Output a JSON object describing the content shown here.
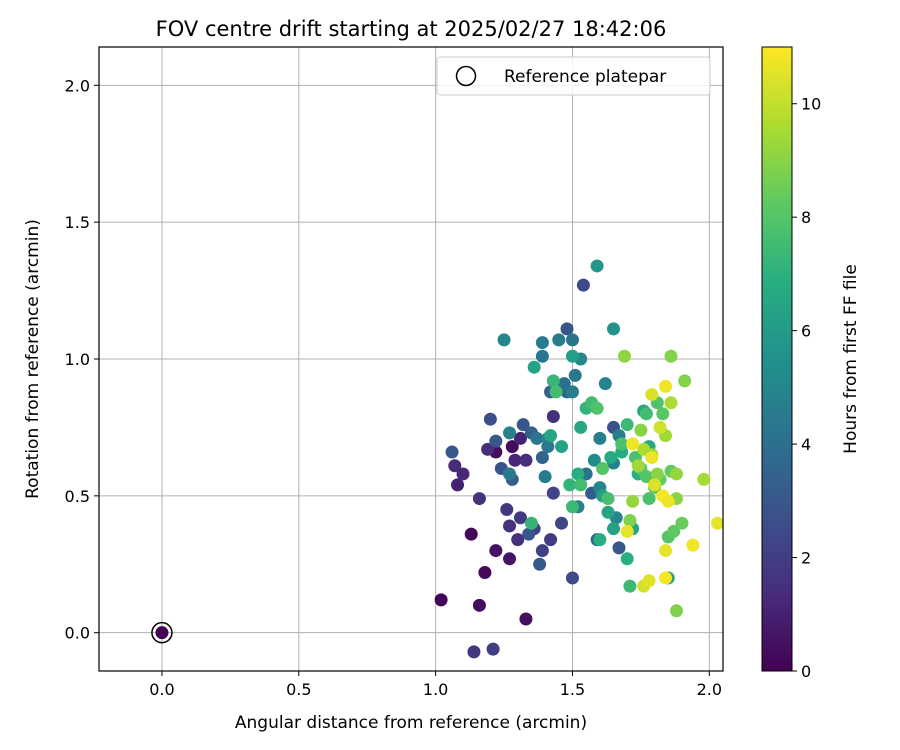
{
  "chart_data": {
    "type": "scatter",
    "title": "FOV centre drift starting at 2025/02/27 18:42:06",
    "xlabel": "Angular distance from reference (arcmin)",
    "ylabel": "Rotation from reference (arcmin)",
    "xlim": [
      -0.23,
      2.05
    ],
    "ylim": [
      -0.14,
      2.14
    ],
    "xticks": [
      0.0,
      0.5,
      1.0,
      1.5,
      2.0
    ],
    "xtick_labels": [
      "0.0",
      "0.5",
      "1.0",
      "1.5",
      "2.0"
    ],
    "yticks": [
      0.0,
      0.5,
      1.0,
      1.5,
      2.0
    ],
    "ytick_labels": [
      "0.0",
      "0.5",
      "1.0",
      "1.5",
      "2.0"
    ],
    "grid": true,
    "legend": {
      "placement": "upper right",
      "label": "Reference platepar"
    },
    "reference_point": {
      "x": 0.0,
      "y": 0.0
    },
    "colorbar": {
      "label": "Hours from first FF file",
      "range": [
        0,
        11
      ],
      "ticks": [
        0,
        2,
        4,
        6,
        8,
        10
      ],
      "tick_labels": [
        "0",
        "2",
        "4",
        "6",
        "8",
        "10"
      ],
      "colormap": "viridis"
    },
    "points": [
      {
        "x": 1.02,
        "y": 0.12,
        "c": 0.1
      },
      {
        "x": 1.13,
        "y": 0.36,
        "c": 0.2
      },
      {
        "x": 1.16,
        "y": 0.1,
        "c": 0.3
      },
      {
        "x": 1.18,
        "y": 0.22,
        "c": 0.2
      },
      {
        "x": 1.22,
        "y": 0.66,
        "c": 0.4
      },
      {
        "x": 1.22,
        "y": 0.3,
        "c": 0.5
      },
      {
        "x": 1.27,
        "y": 0.27,
        "c": 0.6
      },
      {
        "x": 1.28,
        "y": 0.68,
        "c": 0.3
      },
      {
        "x": 1.33,
        "y": 0.05,
        "c": 0.4
      },
      {
        "x": 1.07,
        "y": 0.61,
        "c": 1.3
      },
      {
        "x": 1.08,
        "y": 0.54,
        "c": 1.0
      },
      {
        "x": 1.1,
        "y": 0.58,
        "c": 1.2
      },
      {
        "x": 1.14,
        "y": -0.07,
        "c": 1.8
      },
      {
        "x": 1.16,
        "y": 0.49,
        "c": 1.6
      },
      {
        "x": 1.19,
        "y": 0.67,
        "c": 1.4
      },
      {
        "x": 1.21,
        "y": -0.06,
        "c": 2.0
      },
      {
        "x": 1.26,
        "y": 0.45,
        "c": 1.8
      },
      {
        "x": 1.27,
        "y": 0.39,
        "c": 1.6
      },
      {
        "x": 1.29,
        "y": 0.63,
        "c": 1.2
      },
      {
        "x": 1.3,
        "y": 0.34,
        "c": 1.5
      },
      {
        "x": 1.31,
        "y": 0.42,
        "c": 1.8
      },
      {
        "x": 1.31,
        "y": 0.71,
        "c": 1.1
      },
      {
        "x": 1.33,
        "y": 0.63,
        "c": 1.4
      },
      {
        "x": 1.36,
        "y": 0.38,
        "c": 2.0
      },
      {
        "x": 1.39,
        "y": 0.3,
        "c": 2.1
      },
      {
        "x": 1.42,
        "y": 0.34,
        "c": 1.9
      },
      {
        "x": 1.43,
        "y": 0.79,
        "c": 1.5
      },
      {
        "x": 1.43,
        "y": 0.51,
        "c": 2.2
      },
      {
        "x": 1.46,
        "y": 0.4,
        "c": 2.3
      },
      {
        "x": 1.5,
        "y": 0.2,
        "c": 2.4
      },
      {
        "x": 1.06,
        "y": 0.66,
        "c": 3.0
      },
      {
        "x": 1.2,
        "y": 0.78,
        "c": 2.6
      },
      {
        "x": 1.24,
        "y": 0.6,
        "c": 2.8
      },
      {
        "x": 1.22,
        "y": 0.7,
        "c": 3.0
      },
      {
        "x": 1.28,
        "y": 0.56,
        "c": 3.2
      },
      {
        "x": 1.32,
        "y": 0.76,
        "c": 2.9
      },
      {
        "x": 1.35,
        "y": 0.73,
        "c": 3.4
      },
      {
        "x": 1.34,
        "y": 0.36,
        "c": 3.0
      },
      {
        "x": 1.38,
        "y": 0.25,
        "c": 3.1
      },
      {
        "x": 1.39,
        "y": 0.64,
        "c": 3.5
      },
      {
        "x": 1.42,
        "y": 0.88,
        "c": 3.3
      },
      {
        "x": 1.48,
        "y": 1.11,
        "c": 2.9
      },
      {
        "x": 1.54,
        "y": 1.27,
        "c": 2.5
      },
      {
        "x": 1.57,
        "y": 0.51,
        "c": 3.2
      },
      {
        "x": 1.59,
        "y": 0.34,
        "c": 3.6
      },
      {
        "x": 1.65,
        "y": 0.75,
        "c": 2.7
      },
      {
        "x": 1.67,
        "y": 0.31,
        "c": 3.0
      },
      {
        "x": 1.48,
        "y": 0.88,
        "c": 3.5
      },
      {
        "x": 1.25,
        "y": 1.07,
        "c": 5.0
      },
      {
        "x": 1.27,
        "y": 0.73,
        "c": 4.8
      },
      {
        "x": 1.27,
        "y": 0.58,
        "c": 4.5
      },
      {
        "x": 1.37,
        "y": 0.71,
        "c": 4.3
      },
      {
        "x": 1.39,
        "y": 1.01,
        "c": 4.2
      },
      {
        "x": 1.39,
        "y": 1.06,
        "c": 4.5
      },
      {
        "x": 1.4,
        "y": 0.57,
        "c": 4.6
      },
      {
        "x": 1.41,
        "y": 0.71,
        "c": 4.9
      },
      {
        "x": 1.45,
        "y": 1.07,
        "c": 4.6
      },
      {
        "x": 1.47,
        "y": 0.91,
        "c": 4.0
      },
      {
        "x": 1.5,
        "y": 1.07,
        "c": 4.2
      },
      {
        "x": 1.51,
        "y": 0.94,
        "c": 4.4
      },
      {
        "x": 1.52,
        "y": 0.46,
        "c": 4.8
      },
      {
        "x": 1.53,
        "y": 1.0,
        "c": 5.1
      },
      {
        "x": 1.55,
        "y": 0.58,
        "c": 4.1
      },
      {
        "x": 1.58,
        "y": 0.63,
        "c": 5.2
      },
      {
        "x": 1.59,
        "y": 1.34,
        "c": 5.8
      },
      {
        "x": 1.6,
        "y": 0.71,
        "c": 4.7
      },
      {
        "x": 1.6,
        "y": 0.53,
        "c": 5.0
      },
      {
        "x": 1.62,
        "y": 0.91,
        "c": 4.9
      },
      {
        "x": 1.65,
        "y": 0.62,
        "c": 4.8
      },
      {
        "x": 1.65,
        "y": 1.11,
        "c": 5.6
      },
      {
        "x": 1.66,
        "y": 0.42,
        "c": 5.0
      },
      {
        "x": 1.67,
        "y": 0.72,
        "c": 4.6
      },
      {
        "x": 1.5,
        "y": 0.88,
        "c": 4.7
      },
      {
        "x": 1.41,
        "y": 0.68,
        "c": 4.4
      },
      {
        "x": 1.36,
        "y": 0.97,
        "c": 6.3
      },
      {
        "x": 1.42,
        "y": 0.72,
        "c": 6.5
      },
      {
        "x": 1.46,
        "y": 0.68,
        "c": 6.3
      },
      {
        "x": 1.5,
        "y": 1.01,
        "c": 6.2
      },
      {
        "x": 1.52,
        "y": 0.58,
        "c": 6.8
      },
      {
        "x": 1.53,
        "y": 0.75,
        "c": 6.6
      },
      {
        "x": 1.6,
        "y": 0.34,
        "c": 6.9
      },
      {
        "x": 1.61,
        "y": 0.5,
        "c": 6.2
      },
      {
        "x": 1.63,
        "y": 0.44,
        "c": 6.4
      },
      {
        "x": 1.64,
        "y": 0.64,
        "c": 6.7
      },
      {
        "x": 1.65,
        "y": 0.38,
        "c": 6.3
      },
      {
        "x": 1.68,
        "y": 0.66,
        "c": 6.8
      },
      {
        "x": 1.7,
        "y": 0.27,
        "c": 6.9
      },
      {
        "x": 1.72,
        "y": 0.38,
        "c": 6.5
      },
      {
        "x": 1.74,
        "y": 0.58,
        "c": 6.9
      },
      {
        "x": 1.76,
        "y": 0.81,
        "c": 6.4
      },
      {
        "x": 1.78,
        "y": 0.68,
        "c": 6.6
      },
      {
        "x": 1.85,
        "y": 0.2,
        "c": 6.4
      },
      {
        "x": 1.43,
        "y": 0.92,
        "c": 7.3
      },
      {
        "x": 1.44,
        "y": 0.88,
        "c": 7.6
      },
      {
        "x": 1.49,
        "y": 0.54,
        "c": 7.2
      },
      {
        "x": 1.5,
        "y": 0.46,
        "c": 7.4
      },
      {
        "x": 1.53,
        "y": 0.54,
        "c": 7.6
      },
      {
        "x": 1.55,
        "y": 0.82,
        "c": 7.2
      },
      {
        "x": 1.57,
        "y": 0.84,
        "c": 7.5
      },
      {
        "x": 1.59,
        "y": 0.82,
        "c": 7.9
      },
      {
        "x": 1.61,
        "y": 0.6,
        "c": 8.0
      },
      {
        "x": 1.63,
        "y": 0.49,
        "c": 7.7
      },
      {
        "x": 1.68,
        "y": 0.69,
        "c": 7.8
      },
      {
        "x": 1.7,
        "y": 0.76,
        "c": 7.4
      },
      {
        "x": 1.71,
        "y": 0.17,
        "c": 7.4
      },
      {
        "x": 1.73,
        "y": 0.64,
        "c": 7.8
      },
      {
        "x": 1.75,
        "y": 0.6,
        "c": 8.2
      },
      {
        "x": 1.77,
        "y": 0.8,
        "c": 7.6
      },
      {
        "x": 1.77,
        "y": 0.57,
        "c": 8.0
      },
      {
        "x": 1.78,
        "y": 0.49,
        "c": 7.8
      },
      {
        "x": 1.8,
        "y": 0.53,
        "c": 8.3
      },
      {
        "x": 1.81,
        "y": 0.84,
        "c": 7.9
      },
      {
        "x": 1.83,
        "y": 0.8,
        "c": 8.1
      },
      {
        "x": 1.85,
        "y": 0.35,
        "c": 8.0
      },
      {
        "x": 1.86,
        "y": 0.59,
        "c": 8.3
      },
      {
        "x": 1.87,
        "y": 0.37,
        "c": 8.2
      },
      {
        "x": 1.9,
        "y": 0.4,
        "c": 8.4
      },
      {
        "x": 1.35,
        "y": 0.4,
        "c": 7.2
      },
      {
        "x": 1.82,
        "y": 0.56,
        "c": 8.3
      },
      {
        "x": 1.69,
        "y": 1.01,
        "c": 9.1
      },
      {
        "x": 1.71,
        "y": 0.41,
        "c": 8.8
      },
      {
        "x": 1.72,
        "y": 0.48,
        "c": 9.2
      },
      {
        "x": 1.74,
        "y": 0.61,
        "c": 9.4
      },
      {
        "x": 1.75,
        "y": 0.74,
        "c": 9.0
      },
      {
        "x": 1.76,
        "y": 0.67,
        "c": 9.6
      },
      {
        "x": 1.79,
        "y": 0.65,
        "c": 9.3
      },
      {
        "x": 1.84,
        "y": 0.72,
        "c": 9.4
      },
      {
        "x": 1.86,
        "y": 1.01,
        "c": 8.9
      },
      {
        "x": 1.86,
        "y": 0.84,
        "c": 9.6
      },
      {
        "x": 1.88,
        "y": 0.58,
        "c": 9.2
      },
      {
        "x": 1.88,
        "y": 0.08,
        "c": 8.8
      },
      {
        "x": 1.88,
        "y": 0.49,
        "c": 9.0
      },
      {
        "x": 1.91,
        "y": 0.92,
        "c": 8.9
      },
      {
        "x": 1.98,
        "y": 0.56,
        "c": 9.5
      },
      {
        "x": 1.81,
        "y": 0.58,
        "c": 9.0
      },
      {
        "x": 1.7,
        "y": 0.37,
        "c": 10.6
      },
      {
        "x": 1.72,
        "y": 0.69,
        "c": 10.8
      },
      {
        "x": 1.76,
        "y": 0.17,
        "c": 10.3
      },
      {
        "x": 1.78,
        "y": 0.19,
        "c": 10.5
      },
      {
        "x": 1.79,
        "y": 0.87,
        "c": 10.4
      },
      {
        "x": 1.79,
        "y": 0.64,
        "c": 10.7
      },
      {
        "x": 1.82,
        "y": 0.75,
        "c": 10.2
      },
      {
        "x": 1.83,
        "y": 0.5,
        "c": 10.9
      },
      {
        "x": 1.84,
        "y": 0.3,
        "c": 10.6
      },
      {
        "x": 1.84,
        "y": 0.9,
        "c": 10.8
      },
      {
        "x": 1.84,
        "y": 0.2,
        "c": 10.9
      },
      {
        "x": 1.85,
        "y": 0.48,
        "c": 10.7
      },
      {
        "x": 1.94,
        "y": 0.32,
        "c": 10.8
      },
      {
        "x": 2.03,
        "y": 0.4,
        "c": 10.6
      },
      {
        "x": 1.8,
        "y": 0.54,
        "c": 10.4
      }
    ]
  }
}
